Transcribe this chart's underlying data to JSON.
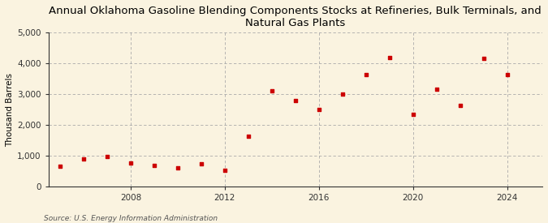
{
  "title": "Annual Oklahoma Gasoline Blending Components Stocks at Refineries, Bulk Terminals, and\nNatural Gas Plants",
  "ylabel": "Thousand Barrels",
  "source": "Source: U.S. Energy Information Administration",
  "background_color": "#faf3e0",
  "plot_bg_color": "#faf3e0",
  "marker_color": "#cc0000",
  "grid_color": "#aaaaaa",
  "spine_color": "#333333",
  "years": [
    2005,
    2006,
    2007,
    2008,
    2009,
    2010,
    2011,
    2012,
    2013,
    2014,
    2015,
    2016,
    2017,
    2018,
    2019,
    2020,
    2021,
    2022,
    2023,
    2024
  ],
  "values": [
    650,
    900,
    975,
    750,
    675,
    600,
    725,
    525,
    1625,
    3100,
    2800,
    2500,
    3000,
    3625,
    4200,
    2350,
    3150,
    2625,
    4175,
    3625
  ],
  "ylim": [
    0,
    5000
  ],
  "yticks": [
    0,
    1000,
    2000,
    3000,
    4000,
    5000
  ],
  "ytick_labels": [
    "0",
    "1,000",
    "2,000",
    "3,000",
    "4,000",
    "5,000"
  ],
  "xlim": [
    2004.5,
    2025.5
  ],
  "xticks": [
    2008,
    2012,
    2016,
    2020,
    2024
  ],
  "title_fontsize": 9.5,
  "label_fontsize": 7.5,
  "tick_fontsize": 7.5,
  "source_fontsize": 6.5
}
